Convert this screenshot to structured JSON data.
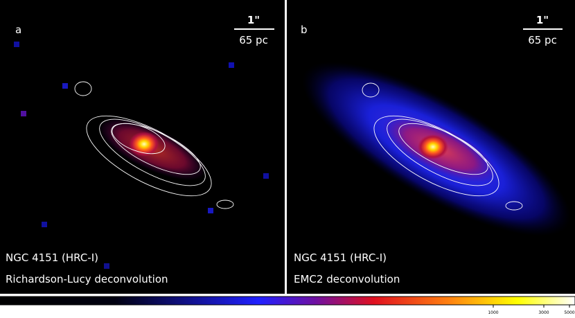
{
  "panels": [
    {
      "letter": "a",
      "scale_angle": "1\"",
      "scale_length": "65 pc",
      "object": "NGC 4151 (HRC-I)",
      "method": "Richardson-Lucy deconvolution"
    },
    {
      "letter": "b",
      "scale_angle": "1\"",
      "scale_length": "65 pc",
      "object": "NGC 4151 (HRC-I)",
      "method": "EMC2 deconvolution"
    }
  ],
  "colorbar": {
    "ticks": [
      "1000",
      "3000",
      "5000"
    ]
  }
}
